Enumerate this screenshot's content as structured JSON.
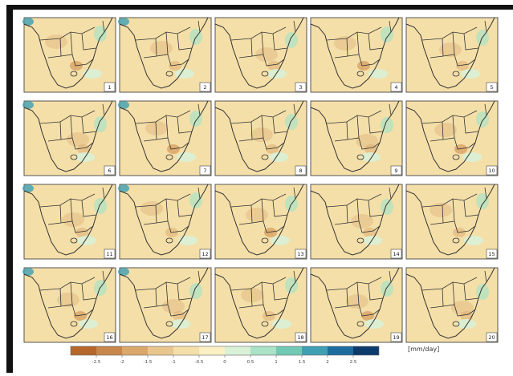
{
  "panels": [
    "1",
    "2",
    "3",
    "4",
    "5",
    "6",
    "7",
    "8",
    "9",
    "10",
    "11",
    "12",
    "13",
    "14",
    "15",
    "16",
    "17",
    "18",
    "19",
    "20"
  ],
  "colorbar": {
    "colors": [
      "#b5682a",
      "#c8874a",
      "#dba86b",
      "#e9c68e",
      "#f4dfa8",
      "#fbf0c4",
      "#d9f1d6",
      "#a9e2c6",
      "#72c9b3",
      "#3f9fb3",
      "#1d6c9e",
      "#0c3a6b"
    ],
    "ticks": [
      "-2.5",
      "-2",
      "-1.5",
      "-1",
      "-0.5",
      "0",
      "0.5",
      "1",
      "1.5",
      "2",
      "2.5"
    ],
    "unit": "[mm/day]"
  }
}
